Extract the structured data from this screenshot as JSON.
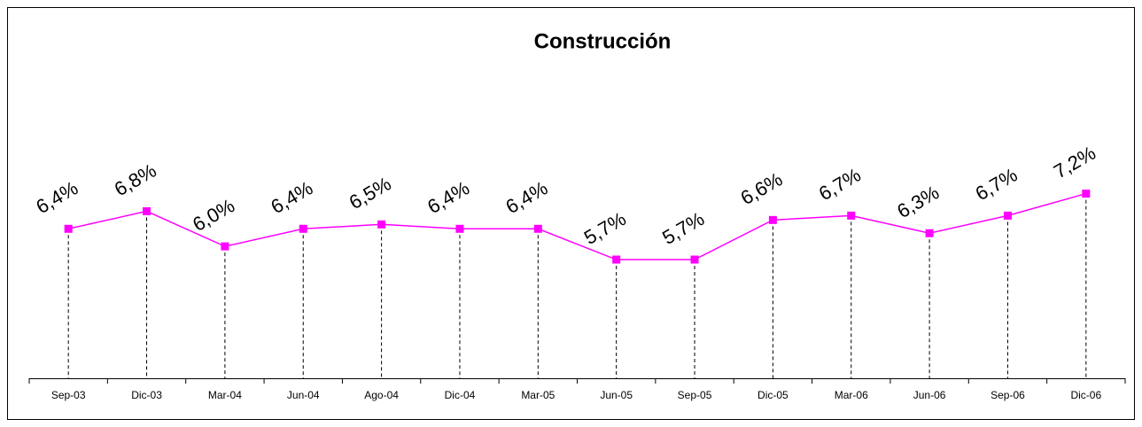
{
  "chart_data": {
    "type": "line",
    "title": "Construcción",
    "categories": [
      "Sep-03",
      "Dic-03",
      "Mar-04",
      "Jun-04",
      "Ago-04",
      "Dic-04",
      "Mar-05",
      "Jun-05",
      "Sep-05",
      "Dic-05",
      "Mar-06",
      "Jun-06",
      "Sep-06",
      "Dic-06"
    ],
    "values": [
      6.4,
      6.8,
      6.0,
      6.4,
      6.5,
      6.4,
      6.4,
      5.7,
      5.7,
      6.6,
      6.7,
      6.3,
      6.7,
      7.2
    ],
    "value_labels": [
      "6,4%",
      "6,8%",
      "6,0%",
      "6,4%",
      "6,5%",
      "6,4%",
      "6,4%",
      "5,7%",
      "5,7%",
      "6,6%",
      "6,7%",
      "6,3%",
      "6,7%",
      "7,2%"
    ],
    "color": "#ff00ff",
    "ylim": [
      3,
      11
    ]
  }
}
